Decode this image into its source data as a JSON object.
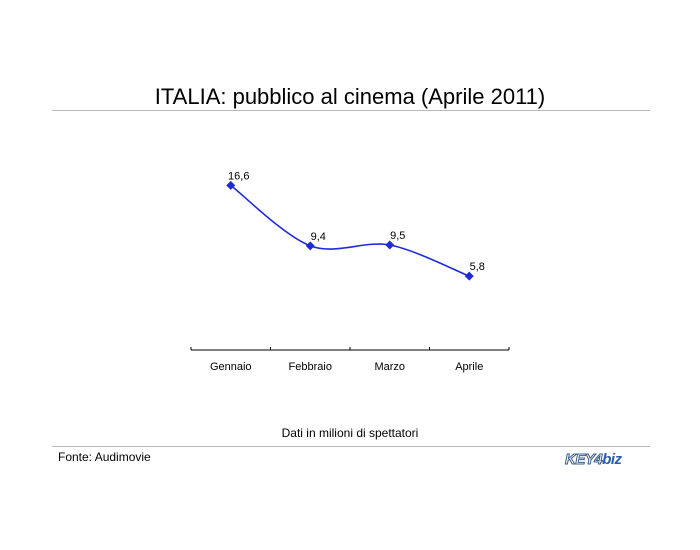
{
  "page": {
    "title": "ITALIA: pubblico al cinema (Aprile 2011)"
  },
  "footer": {
    "note": "Dati in milioni di spettatori",
    "source": "Fonte: Audimovie",
    "logo_key": "KEY4",
    "logo_biz": "biz"
  },
  "chart_data": {
    "type": "line",
    "categories": [
      "Gennaio",
      "Febbraio",
      "Marzo",
      "Aprile"
    ],
    "series": [
      {
        "values": [
          16.6,
          9.4,
          9.5,
          5.8
        ],
        "labels": [
          "16,6",
          "9,4",
          "9,5",
          "5,8"
        ],
        "color": "#1f2bd6"
      }
    ],
    "ylim": [
      -3,
      22
    ],
    "grid": false,
    "legend": "none"
  }
}
